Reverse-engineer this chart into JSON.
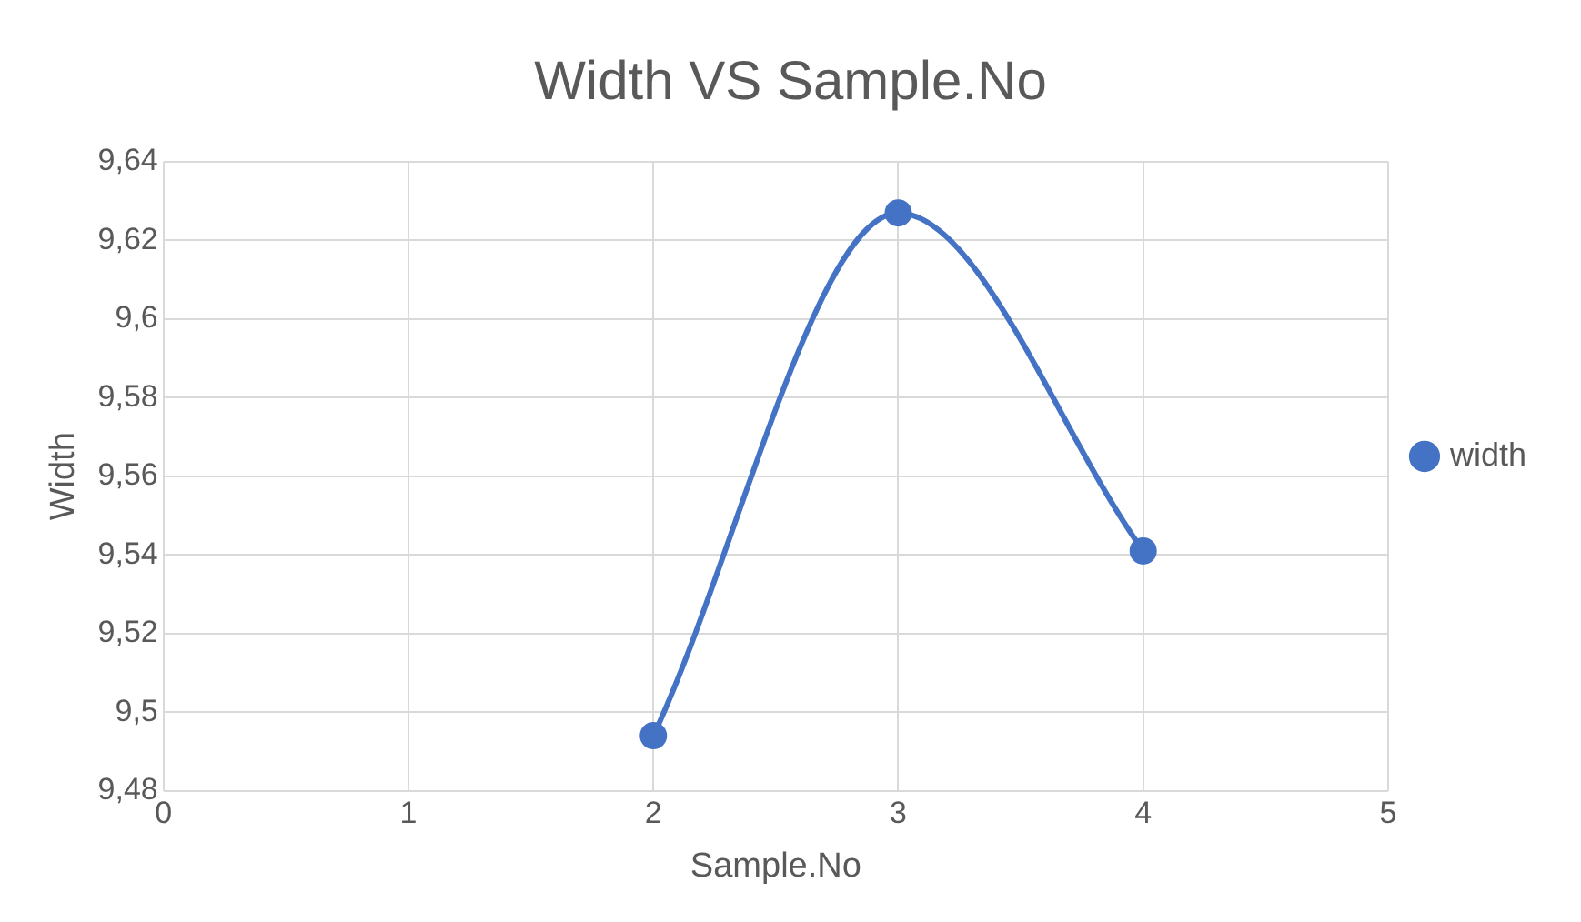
{
  "chart_data": {
    "type": "line",
    "title": "Width VS Sample.No",
    "xlabel": "Sample.No",
    "ylabel": "Width",
    "x": [
      2,
      3,
      4
    ],
    "series": [
      {
        "name": "width",
        "color": "#4472c4",
        "values": [
          9.494,
          9.627,
          9.541
        ]
      }
    ],
    "xlim": [
      0,
      5
    ],
    "xticks": [
      0,
      1,
      2,
      3,
      4,
      5
    ],
    "ylim": [
      9.48,
      9.64
    ],
    "yticks": [
      {
        "value": 9.48,
        "label": "9,48"
      },
      {
        "value": 9.5,
        "label": "9,5"
      },
      {
        "value": 9.52,
        "label": "9,52"
      },
      {
        "value": 9.54,
        "label": "9,54"
      },
      {
        "value": 9.56,
        "label": "9,56"
      },
      {
        "value": 9.58,
        "label": "9,58"
      },
      {
        "value": 9.6,
        "label": "9,6"
      },
      {
        "value": 9.62,
        "label": "9,62"
      },
      {
        "value": 9.64,
        "label": "9,64"
      }
    ],
    "grid": true,
    "legend": "right",
    "marker": "circle",
    "line_style": "solid"
  }
}
